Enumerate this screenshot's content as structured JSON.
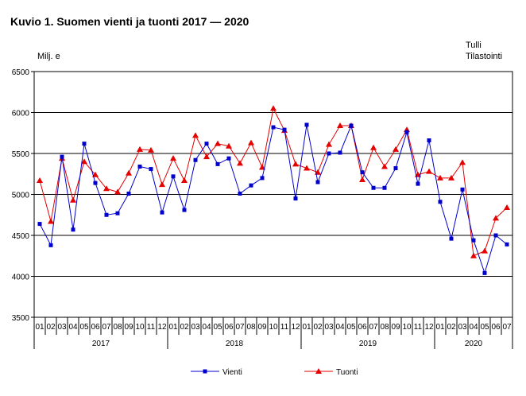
{
  "title": "Kuvio 1. Suomen vienti ja tuonti 2017 — 2020",
  "y_unit": "Milj. e",
  "source_line1": "Tulli",
  "source_line2": "Tilastointi",
  "colors": {
    "vienti": "#0000cc",
    "tuonti": "#e60000",
    "grid": "#000000"
  },
  "chart_data": {
    "type": "line",
    "ylim": [
      3500,
      6500
    ],
    "yticks": [
      3500,
      4000,
      4500,
      5000,
      5500,
      6000,
      6500
    ],
    "grid": true,
    "legend_position": "bottom",
    "x": [
      "01",
      "02",
      "03",
      "04",
      "05",
      "06",
      "07",
      "08",
      "09",
      "10",
      "11",
      "12",
      "01",
      "02",
      "03",
      "04",
      "05",
      "06",
      "07",
      "08",
      "09",
      "10",
      "11",
      "12",
      "01",
      "02",
      "03",
      "04",
      "05",
      "06",
      "07",
      "08",
      "09",
      "10",
      "11",
      "12",
      "01",
      "02",
      "03",
      "04",
      "05",
      "06",
      "07"
    ],
    "years": [
      {
        "label": "2017",
        "start": 0,
        "count": 12
      },
      {
        "label": "2018",
        "start": 12,
        "count": 12
      },
      {
        "label": "2019",
        "start": 24,
        "count": 12
      },
      {
        "label": "2020",
        "start": 36,
        "count": 7
      }
    ],
    "series": [
      {
        "name": "Vienti",
        "marker": "square",
        "values": [
          4640,
          4380,
          5460,
          4570,
          5620,
          5140,
          4750,
          4770,
          5010,
          5340,
          5310,
          4780,
          5220,
          4810,
          5420,
          5620,
          5370,
          5440,
          5010,
          5110,
          5200,
          5820,
          5790,
          4950,
          5850,
          5150,
          5500,
          5510,
          5840,
          5270,
          5080,
          5080,
          5320,
          5760,
          5130,
          5660,
          4910,
          4460,
          5060,
          4440,
          4040,
          4500,
          4390
        ]
      },
      {
        "name": "Tuonti",
        "marker": "triangle",
        "values": [
          5170,
          4670,
          5440,
          4930,
          5400,
          5240,
          5070,
          5030,
          5260,
          5550,
          5540,
          5120,
          5440,
          5170,
          5720,
          5460,
          5620,
          5590,
          5380,
          5630,
          5330,
          6050,
          5780,
          5370,
          5320,
          5270,
          5610,
          5840,
          5840,
          5180,
          5570,
          5340,
          5550,
          5790,
          5240,
          5280,
          5200,
          5200,
          5390,
          4250,
          4310,
          4710,
          4840
        ]
      }
    ]
  }
}
